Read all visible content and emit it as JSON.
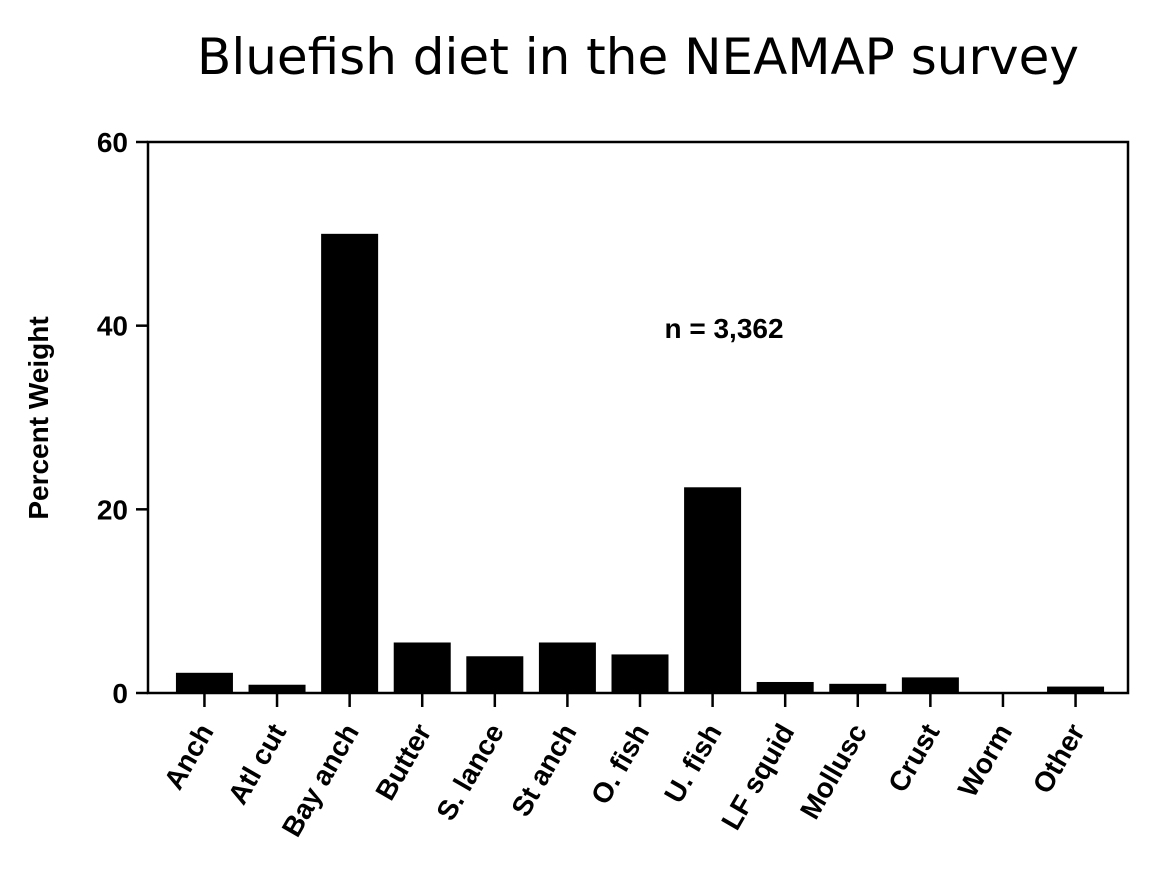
{
  "chart_data": {
    "type": "bar",
    "title": "Bluefish diet in the NEAMAP survey",
    "xlabel": "",
    "ylabel": "Percent Weight",
    "ylim": [
      0,
      60
    ],
    "yticks": [
      0,
      20,
      40,
      60
    ],
    "categories": [
      "Anch",
      "Atl cut",
      "Bay anch",
      "Butter",
      "S. lance",
      "St anch",
      "O. fish",
      "U. fish",
      "LF squid",
      "Mollusc",
      "Crust",
      "Worm",
      "Other"
    ],
    "values": [
      2.2,
      0.9,
      50.0,
      5.5,
      4.0,
      5.5,
      4.2,
      22.4,
      1.2,
      1.0,
      1.7,
      0.0,
      0.7
    ],
    "annotation": "n = 3,362",
    "grid": false,
    "bar_color": "#000000"
  }
}
